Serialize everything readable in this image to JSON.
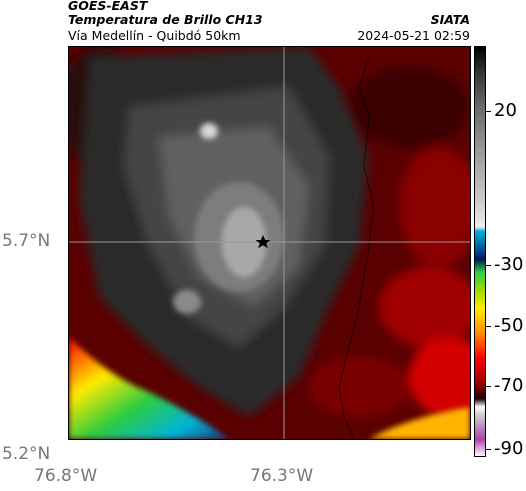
{
  "header": {
    "satellite": "GOES-EAST",
    "product": "Temperatura de Brillo CH13",
    "region": "Vía Medellín - Quibdó 50km",
    "org": "SIATA",
    "datetime": "2024-05-21 02:59"
  },
  "map": {
    "lat_labels": [
      "5.7°N",
      "5.2°N"
    ],
    "lon_labels": [
      "76.8°W",
      "76.3°W"
    ],
    "marker_icon": "star-icon",
    "gridlines": true
  },
  "colorbar": {
    "tick_labels": [
      "20",
      "-30",
      "-50",
      "-70",
      "-90"
    ],
    "range": [
      -95,
      35
    ],
    "colors": {
      "warm": "#8b0000",
      "gray": "#808080",
      "cyan": "#00b4d8",
      "green": "#2ecc40",
      "yellow": "#ffeb00",
      "red": "#ff0000",
      "magenta": "#b040b0"
    }
  }
}
